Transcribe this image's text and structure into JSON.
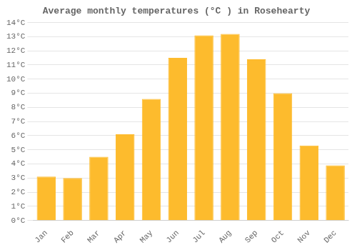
{
  "chart_data": {
    "type": "bar",
    "title": "Average monthly temperatures (°C ) in Rosehearty",
    "categories": [
      "Jan",
      "Feb",
      "Mar",
      "Apr",
      "May",
      "Jun",
      "Jul",
      "Aug",
      "Sep",
      "Oct",
      "Nov",
      "Dec"
    ],
    "values": [
      3.1,
      3.0,
      4.5,
      6.1,
      8.6,
      11.5,
      13.1,
      13.2,
      11.4,
      9.0,
      5.3,
      3.9
    ],
    "color": "#FDBB2D",
    "ylim": [
      0,
      14
    ],
    "yticks": [
      {
        "value": 0,
        "label": "0°C"
      },
      {
        "value": 1,
        "label": "1°C"
      },
      {
        "value": 2,
        "label": "2°C"
      },
      {
        "value": 3,
        "label": "3°C"
      },
      {
        "value": 4,
        "label": "4°C"
      },
      {
        "value": 5,
        "label": "5°C"
      },
      {
        "value": 6,
        "label": "6°C"
      },
      {
        "value": 7,
        "label": "7°C"
      },
      {
        "value": 8,
        "label": "8°C"
      },
      {
        "value": 9,
        "label": "9°C"
      },
      {
        "value": 10,
        "label": "10°C"
      },
      {
        "value": 11,
        "label": "11°C"
      },
      {
        "value": 12,
        "label": "12°C"
      },
      {
        "value": 13,
        "label": "13°C"
      },
      {
        "value": 14,
        "label": "14°C"
      }
    ],
    "grid": true
  }
}
